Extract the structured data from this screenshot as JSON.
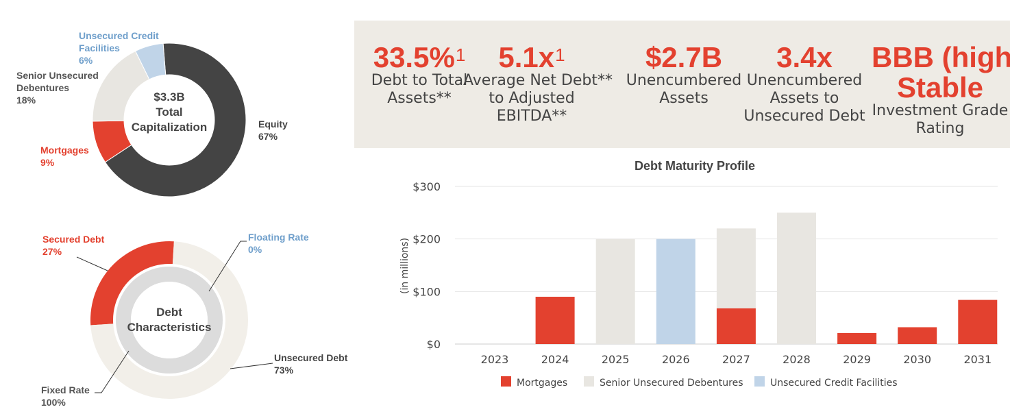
{
  "colors": {
    "red": "#e3412f",
    "dark": "#444444",
    "light_gray": "#e8e6e1",
    "cream": "#f2efe9",
    "ring_gray": "#dcdcdc",
    "blue": "#c0d4e8",
    "blue_text": "#6f9fcb",
    "panel_bg": "#eeebe5"
  },
  "metrics": [
    {
      "value": "33.5%",
      "sup": "1",
      "label": [
        "Debt to Total",
        "Assets**"
      ]
    },
    {
      "value": "5.1x",
      "sup": "1",
      "label": [
        "Average Net Debt**",
        "to Adjusted",
        "EBITDA**"
      ]
    },
    {
      "value": "$2.7B",
      "sup": "",
      "label": [
        "Unencumbered",
        "Assets"
      ]
    },
    {
      "value": "3.4x",
      "sup": "",
      "label": [
        "Unencumbered",
        "Assets to",
        "Unsecured Debt"
      ]
    },
    {
      "value": "BBB (high)",
      "value2": "Stable",
      "sup": "",
      "label": [
        "Investment Grade",
        "Rating"
      ]
    }
  ],
  "chart_data": [
    {
      "type": "pie",
      "variant": "donut",
      "center_label": [
        "$3.3B",
        "Total",
        "Capitalization"
      ],
      "slices": [
        {
          "label": "Equity",
          "value": 67,
          "display": "67%",
          "color": "#444444",
          "label_lines": [
            "Equity",
            "67%"
          ]
        },
        {
          "label": "Mortgages",
          "value": 9,
          "display": "9%",
          "color": "#e3412f",
          "label_lines": [
            "Mortgages",
            "9%"
          ]
        },
        {
          "label": "Senior Unsecured Debentures",
          "value": 18,
          "display": "18%",
          "color": "#e8e6e1",
          "label_lines": [
            "Senior Unsecured",
            "Debentures",
            "18%"
          ]
        },
        {
          "label": "Unsecured Credit Facilities",
          "value": 6,
          "display": "6%",
          "color": "#c0d4e8",
          "label_lines": [
            "Unsecured Credit",
            "Facilities",
            "6%"
          ]
        }
      ]
    },
    {
      "type": "pie",
      "variant": "nested-donut",
      "center_label": [
        "Debt",
        "Characteristics"
      ],
      "outer_ring": [
        {
          "label": "Secured Debt",
          "value": 27,
          "display": "27%",
          "color": "#e3412f",
          "label_lines": [
            "Secured Debt",
            "27%"
          ]
        },
        {
          "label": "Unsecured Debt",
          "value": 73,
          "display": "73%",
          "color": "#f2efe9",
          "label_lines": [
            "Unsecured Debt",
            "73%"
          ]
        }
      ],
      "inner_ring": [
        {
          "label": "Fixed Rate",
          "value": 100,
          "display": "100%",
          "color": "#dcdcdc",
          "label_lines": [
            "Fixed Rate",
            "100%"
          ]
        },
        {
          "label": "Floating Rate",
          "value": 0,
          "display": "0%",
          "color": "#c0d4e8",
          "label_lines": [
            "Floating Rate",
            "0%"
          ]
        }
      ]
    },
    {
      "type": "bar",
      "stacked": true,
      "title": "Debt Maturity Profile",
      "ylabel": "(in millions)",
      "ylim": [
        0,
        300
      ],
      "yticks": [
        0,
        100,
        200,
        300
      ],
      "ytick_labels": [
        "$0",
        "$100",
        "$200",
        "$300"
      ],
      "grid": true,
      "legend_position": "bottom",
      "categories": [
        "2023",
        "2024",
        "2025",
        "2026",
        "2027",
        "2028",
        "2029",
        "2030",
        "2031"
      ],
      "series": [
        {
          "name": "Mortgages",
          "color": "#e3412f",
          "values": [
            0,
            90,
            0,
            0,
            68,
            0,
            21,
            32,
            84
          ]
        },
        {
          "name": "Senior Unsecured Debentures",
          "color": "#e8e6e1",
          "values": [
            0,
            0,
            200,
            0,
            152,
            250,
            0,
            0,
            0
          ]
        },
        {
          "name": "Unsecured Credit Facilities",
          "color": "#c0d4e8",
          "values": [
            0,
            0,
            0,
            200,
            0,
            0,
            0,
            0,
            0
          ]
        }
      ]
    }
  ]
}
